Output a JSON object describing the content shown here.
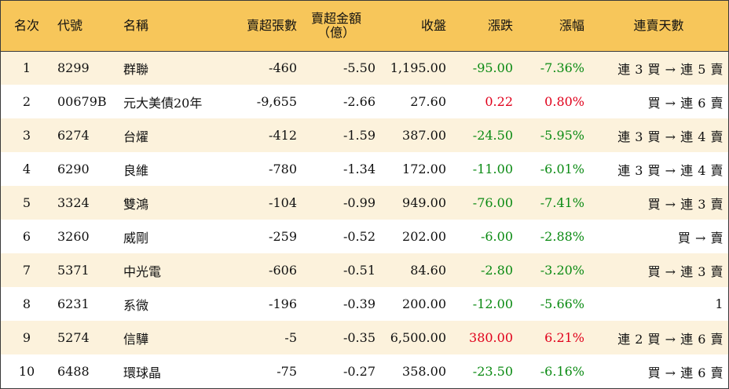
{
  "headers": {
    "rank": "名次",
    "code": "代號",
    "name": "名稱",
    "oversold_lots": "賣超張數",
    "oversold_amount_line1": "賣超金額",
    "oversold_amount_line2": "（億）",
    "close": "收盤",
    "change": "漲跌",
    "change_pct": "漲幅",
    "streak": "連賣天數"
  },
  "rows": [
    {
      "rank": "1",
      "code": "8299",
      "name": "群聯",
      "lots": "-460",
      "amount": "-5.50",
      "close": "1,195.00",
      "change": "-95.00",
      "pct": "-7.36%",
      "dir": "down",
      "streak": "連 3 買 → 連 5 賣"
    },
    {
      "rank": "2",
      "code": "00679B",
      "name": "元大美債20年",
      "lots": "-9,655",
      "amount": "-2.66",
      "close": "27.60",
      "change": "0.22",
      "pct": "0.80%",
      "dir": "up",
      "streak": "買 → 連 6 賣"
    },
    {
      "rank": "3",
      "code": "6274",
      "name": "台燿",
      "lots": "-412",
      "amount": "-1.59",
      "close": "387.00",
      "change": "-24.50",
      "pct": "-5.95%",
      "dir": "down",
      "streak": "連 3 買 → 連 4 賣"
    },
    {
      "rank": "4",
      "code": "6290",
      "name": "良維",
      "lots": "-780",
      "amount": "-1.34",
      "close": "172.00",
      "change": "-11.00",
      "pct": "-6.01%",
      "dir": "down",
      "streak": "連 3 買 → 連 4 賣"
    },
    {
      "rank": "5",
      "code": "3324",
      "name": "雙鴻",
      "lots": "-104",
      "amount": "-0.99",
      "close": "949.00",
      "change": "-76.00",
      "pct": "-7.41%",
      "dir": "down",
      "streak": "買 → 連 3 賣"
    },
    {
      "rank": "6",
      "code": "3260",
      "name": "威剛",
      "lots": "-259",
      "amount": "-0.52",
      "close": "202.00",
      "change": "-6.00",
      "pct": "-2.88%",
      "dir": "down",
      "streak": "買 → 賣"
    },
    {
      "rank": "7",
      "code": "5371",
      "name": "中光電",
      "lots": "-606",
      "amount": "-0.51",
      "close": "84.60",
      "change": "-2.80",
      "pct": "-3.20%",
      "dir": "down",
      "streak": "買 → 連 3 賣"
    },
    {
      "rank": "8",
      "code": "6231",
      "name": "系微",
      "lots": "-196",
      "amount": "-0.39",
      "close": "200.00",
      "change": "-12.00",
      "pct": "-5.66%",
      "dir": "down",
      "streak": "1"
    },
    {
      "rank": "9",
      "code": "5274",
      "name": "信驊",
      "lots": "-5",
      "amount": "-0.35",
      "close": "6,500.00",
      "change": "380.00",
      "pct": "6.21%",
      "dir": "up",
      "streak": "連 2 買 → 連 6 賣"
    },
    {
      "rank": "10",
      "code": "6488",
      "name": "環球晶",
      "lots": "-75",
      "amount": "-0.27",
      "close": "358.00",
      "change": "-23.50",
      "pct": "-6.16%",
      "dir": "down",
      "streak": "買 → 連 6 賣"
    }
  ],
  "colors": {
    "header_bg": "#f7c65a",
    "stripe_bg": "#fcf2dc",
    "up": "#e0001b",
    "down": "#0a8a12"
  }
}
